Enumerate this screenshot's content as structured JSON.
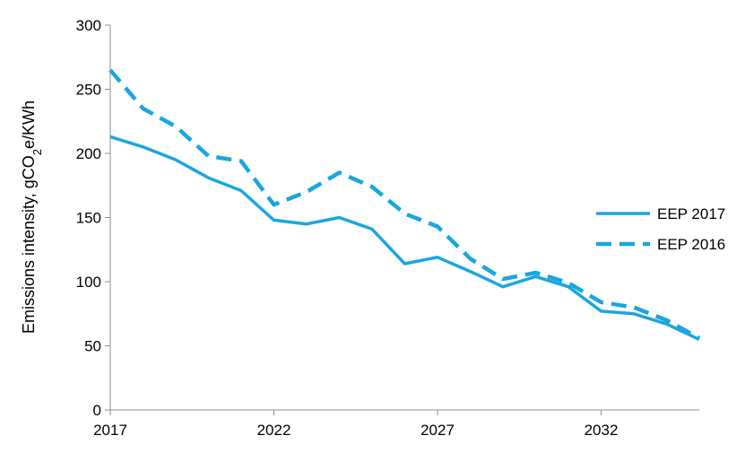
{
  "chart_data": {
    "type": "line",
    "title": "",
    "xlabel": "",
    "ylabel_parts": [
      "Emissions intensity, gCO",
      "2",
      "e/KWh"
    ],
    "xlim": [
      2017,
      2035
    ],
    "ylim": [
      0,
      300
    ],
    "x_ticks": [
      2017,
      2022,
      2027,
      2032
    ],
    "y_ticks": [
      0,
      50,
      100,
      150,
      200,
      250,
      300
    ],
    "grid": false,
    "legend_position": "right",
    "x": [
      2017,
      2018,
      2019,
      2020,
      2021,
      2022,
      2023,
      2024,
      2025,
      2026,
      2027,
      2028,
      2029,
      2030,
      2031,
      2032,
      2033,
      2034,
      2035
    ],
    "series": [
      {
        "name": "EEP 2017",
        "style": "solid",
        "color": "#1aa6e0",
        "values": [
          213,
          205,
          195,
          181,
          171,
          148,
          145,
          150,
          141,
          114,
          119,
          108,
          96,
          104,
          96,
          77,
          75,
          67,
          55
        ]
      },
      {
        "name": "EEP 2016",
        "style": "dashed",
        "color": "#1aa6e0",
        "values": [
          265,
          235,
          221,
          198,
          194,
          160,
          170,
          185,
          174,
          153,
          143,
          118,
          102,
          107,
          99,
          84,
          80,
          70,
          56
        ]
      }
    ]
  }
}
